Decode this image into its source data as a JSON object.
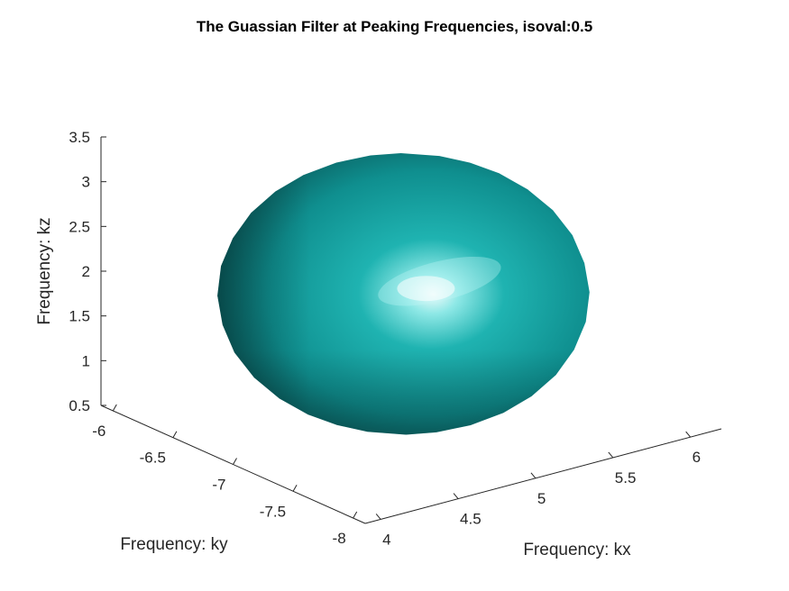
{
  "chart_data": {
    "type": "surface3d",
    "title": "The Guassian Filter at Peaking Frequencies, isoval:0.5",
    "xlabel": "Frequency: kx",
    "ylabel": "Frequency: ky",
    "zlabel": "Frequency: kz",
    "x_ticks": [
      "4",
      "4.5",
      "5",
      "5.5",
      "6"
    ],
    "y_ticks": [
      "-6",
      "-6.5",
      "-7",
      "-7.5",
      "-8"
    ],
    "z_ticks": [
      "0.5",
      "1",
      "1.5",
      "2",
      "2.5",
      "3",
      "3.5"
    ],
    "xlim": [
      3.9,
      6.2
    ],
    "ylim": [
      -8.1,
      -5.9
    ],
    "zlim": [
      0.5,
      3.5
    ],
    "isovalue": 0.5,
    "surface": {
      "shape": "ellipsoid",
      "center": {
        "kx": 5.0,
        "ky": -7.0,
        "kz": 1.9
      },
      "semi_axes": {
        "kx": 0.95,
        "ky": 0.95,
        "kz": 1.4
      },
      "face_color": "#12a6a6",
      "shading": "lit"
    },
    "grid": false,
    "box": false
  }
}
